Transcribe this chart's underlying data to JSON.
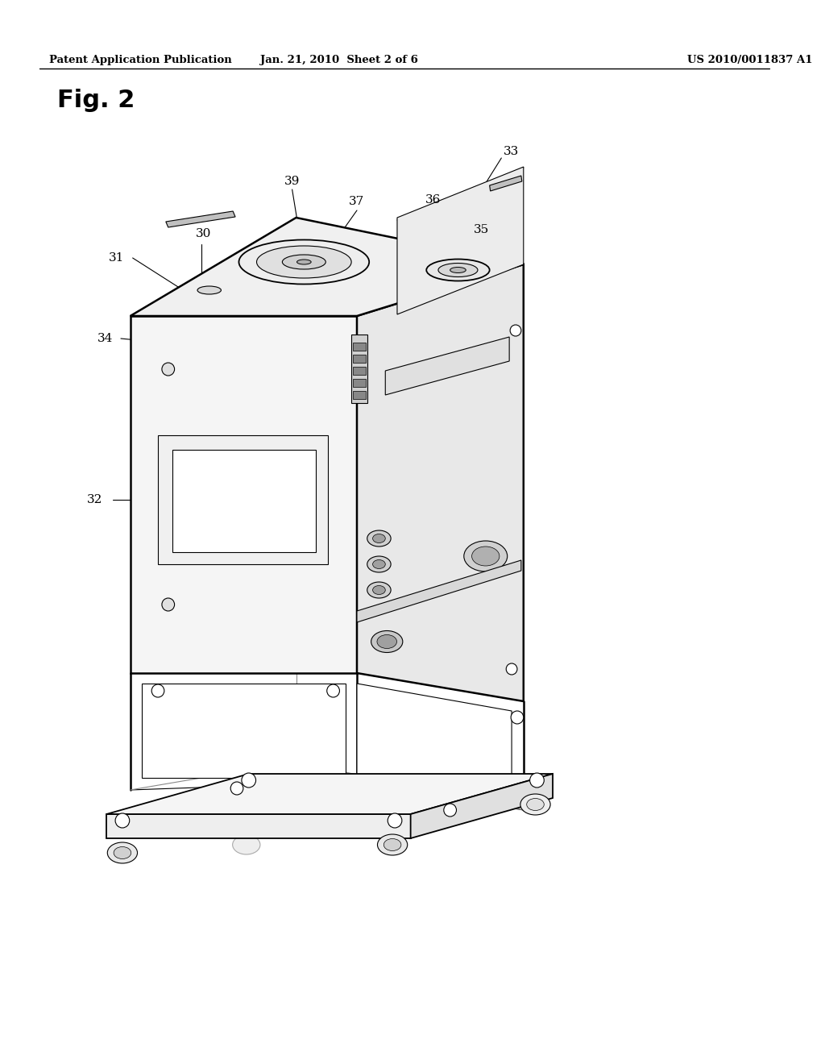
{
  "bg_color": "#ffffff",
  "header_left": "Patent Application Publication",
  "header_center": "Jan. 21, 2010  Sheet 2 of 6",
  "header_right": "US 2010/0011837 A1",
  "fig_label": "Fig. 2",
  "label_fontsize": 11,
  "header_fontsize": 9.5,
  "fig_label_fontsize": 22,
  "ann_lw": 0.8,
  "lw_main": 1.3,
  "lw_thick": 1.8,
  "lw_thin": 0.8
}
